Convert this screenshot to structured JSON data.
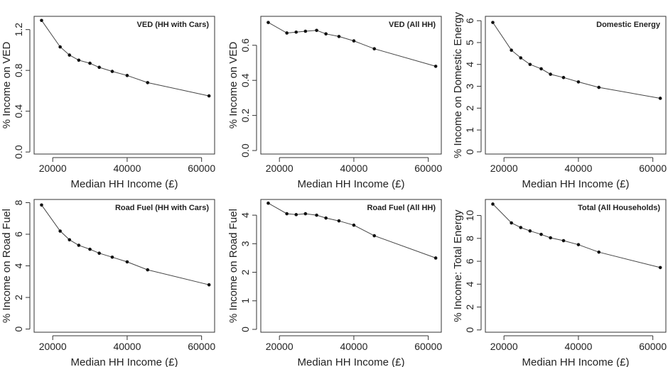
{
  "chart_data": [
    {
      "type": "line",
      "title": "VED (HH with Cars)",
      "xlabel": "Median HH Income (£)",
      "ylabel": "% Income on VED",
      "xlim": [
        15000,
        63500
      ],
      "ylim": [
        -0.02,
        1.33
      ],
      "x_ticks": [
        20000,
        40000,
        60000
      ],
      "y_ticks": [
        0.0,
        0.4,
        0.8,
        1.2
      ],
      "y_tick_labels": [
        "0.0",
        "0.4",
        "0.8",
        "1.2"
      ],
      "grid": false,
      "x": [
        17000,
        22000,
        24500,
        27000,
        30000,
        32500,
        36000,
        40000,
        45500,
        62000
      ],
      "y": [
        1.29,
        1.03,
        0.95,
        0.9,
        0.87,
        0.83,
        0.79,
        0.75,
        0.68,
        0.55
      ]
    },
    {
      "type": "line",
      "title": "VED (All HH)",
      "xlabel": "Median HH Income (£)",
      "ylabel": "% Income on VED",
      "xlim": [
        15000,
        63500
      ],
      "ylim": [
        -0.02,
        0.765
      ],
      "x_ticks": [
        20000,
        40000,
        60000
      ],
      "y_ticks": [
        0.0,
        0.2,
        0.4,
        0.6
      ],
      "y_tick_labels": [
        "0.0",
        "0.2",
        "0.4",
        "0.6"
      ],
      "grid": false,
      "x": [
        17000,
        22000,
        24500,
        27000,
        30000,
        32500,
        36000,
        40000,
        45500,
        62000
      ],
      "y": [
        0.73,
        0.67,
        0.675,
        0.68,
        0.685,
        0.665,
        0.65,
        0.625,
        0.58,
        0.48
      ]
    },
    {
      "type": "line",
      "title": "Domestic Energy",
      "xlabel": "Median HH Income (£)",
      "ylabel": "% Income on Domestic Energy",
      "xlim": [
        15000,
        63500
      ],
      "ylim": [
        -0.1,
        6.2
      ],
      "x_ticks": [
        20000,
        40000,
        60000
      ],
      "y_ticks": [
        0,
        1,
        2,
        3,
        4,
        5,
        6
      ],
      "y_tick_labels": [
        "0",
        "1",
        "2",
        "3",
        "4",
        "5",
        "6"
      ],
      "grid": false,
      "x": [
        17000,
        22000,
        24500,
        27000,
        30000,
        32500,
        36000,
        40000,
        45500,
        62000
      ],
      "y": [
        5.92,
        4.65,
        4.3,
        4.0,
        3.8,
        3.55,
        3.4,
        3.2,
        2.95,
        2.45
      ]
    },
    {
      "type": "line",
      "title": "Road Fuel (HH with Cars)",
      "xlabel": "Median HH Income (£)",
      "ylabel": "% Income on Road Fuel",
      "xlim": [
        15000,
        63500
      ],
      "ylim": [
        -0.2,
        8.2
      ],
      "x_ticks": [
        20000,
        40000,
        60000
      ],
      "y_ticks": [
        0,
        2,
        4,
        6,
        8
      ],
      "y_tick_labels": [
        "0",
        "2",
        "4",
        "6",
        "8"
      ],
      "grid": false,
      "x": [
        17000,
        22000,
        24500,
        27000,
        30000,
        32500,
        36000,
        40000,
        45500,
        62000
      ],
      "y": [
        7.85,
        6.2,
        5.65,
        5.3,
        5.05,
        4.8,
        4.55,
        4.25,
        3.75,
        2.8
      ]
    },
    {
      "type": "line",
      "title": "Road Fuel (All HH)",
      "xlabel": "Median HH Income (£)",
      "ylabel": "% Income on Road Fuel",
      "xlim": [
        15000,
        63500
      ],
      "ylim": [
        -0.1,
        4.55
      ],
      "x_ticks": [
        20000,
        40000,
        60000
      ],
      "y_ticks": [
        0,
        1,
        2,
        3,
        4
      ],
      "y_tick_labels": [
        "0",
        "1",
        "2",
        "3",
        "4"
      ],
      "grid": false,
      "x": [
        17000,
        22000,
        24500,
        27000,
        30000,
        32500,
        36000,
        40000,
        45500,
        62000
      ],
      "y": [
        4.42,
        4.05,
        4.02,
        4.05,
        4.0,
        3.9,
        3.8,
        3.65,
        3.28,
        2.5
      ]
    },
    {
      "type": "line",
      "title": "Total (All Households)",
      "xlabel": "Median HH Income (£)",
      "ylabel": "% Income: Total Energy",
      "xlim": [
        15000,
        63500
      ],
      "ylim": [
        -0.2,
        11.4
      ],
      "x_ticks": [
        20000,
        40000,
        60000
      ],
      "y_ticks": [
        0,
        2,
        4,
        6,
        8,
        10
      ],
      "y_tick_labels": [
        "0",
        "2",
        "4",
        "6",
        "8",
        "10"
      ],
      "grid": false,
      "x": [
        17000,
        22000,
        24500,
        27000,
        30000,
        32500,
        36000,
        40000,
        45500,
        62000
      ],
      "y": [
        11.0,
        9.35,
        8.95,
        8.65,
        8.35,
        8.05,
        7.8,
        7.45,
        6.8,
        5.45
      ]
    }
  ]
}
